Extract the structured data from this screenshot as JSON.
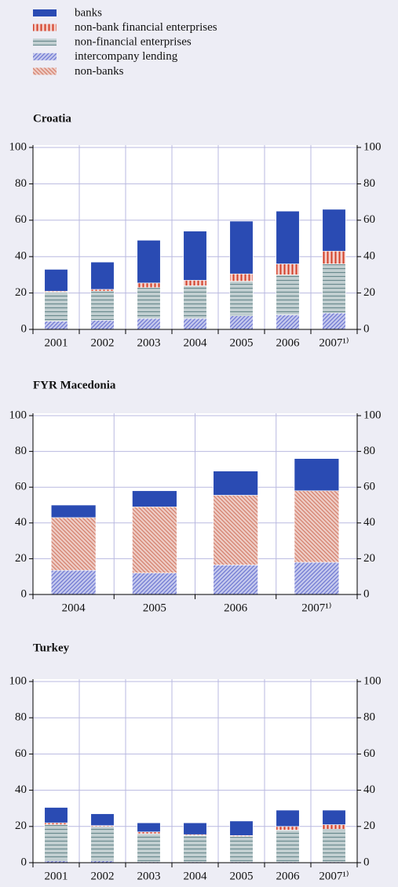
{
  "legend": [
    {
      "name": "banks",
      "color": "#2a4bb3",
      "pattern": "solid"
    },
    {
      "name": "non-bank financial enterprises",
      "color": "#d2402a",
      "pattern": "vertical"
    },
    {
      "name": "non-financial enterprises",
      "color": "#6a8a8e",
      "pattern": "horizontal"
    },
    {
      "name": "intercompany lending",
      "color": "#6f78d2",
      "pattern": "diagonal-up"
    },
    {
      "name": "non-banks",
      "color": "#d4806d",
      "pattern": "diagonal-down"
    }
  ],
  "chart_data": [
    {
      "type": "bar",
      "stacked": true,
      "title": "Croatia",
      "categories": [
        "2001",
        "2002",
        "2003",
        "2004",
        "2005",
        "2006",
        "2007¹⁾"
      ],
      "series": [
        {
          "name": "intercompany lending",
          "color": "#6f78d2",
          "pattern": "diagonal-up",
          "values": [
            4.5,
            5,
            6,
            6,
            7.5,
            8,
            9
          ]
        },
        {
          "name": "non-financial enterprises",
          "color": "#6a8a8e",
          "pattern": "horizontal",
          "values": [
            16,
            16,
            17,
            18,
            19,
            22,
            27
          ]
        },
        {
          "name": "non-bank financial enterprises",
          "color": "#d2402a",
          "pattern": "vertical",
          "values": [
            0.5,
            1,
            2.5,
            3,
            4,
            6,
            7
          ]
        },
        {
          "name": "banks",
          "color": "#2a4bb3",
          "pattern": "solid",
          "values": [
            12,
            15,
            23.5,
            27,
            29,
            29,
            23
          ]
        }
      ],
      "ylim": [
        0,
        100
      ],
      "yticks": [
        0,
        20,
        40,
        60,
        80,
        100
      ],
      "grid": true
    },
    {
      "type": "bar",
      "stacked": true,
      "title": "FYR Macedonia",
      "categories": [
        "2004",
        "2005",
        "2006",
        "2007¹⁾"
      ],
      "series": [
        {
          "name": "intercompany lending",
          "color": "#6f78d2",
          "pattern": "diagonal-up",
          "values": [
            13.5,
            12,
            16.5,
            18
          ]
        },
        {
          "name": "non-banks",
          "color": "#d4806d",
          "pattern": "diagonal-down",
          "values": [
            29.5,
            37,
            39,
            40
          ]
        },
        {
          "name": "banks",
          "color": "#2a4bb3",
          "pattern": "solid",
          "values": [
            7,
            9,
            13.5,
            18
          ]
        }
      ],
      "ylim": [
        0,
        100
      ],
      "yticks": [
        0,
        20,
        40,
        60,
        80,
        100
      ],
      "grid": true
    },
    {
      "type": "bar",
      "stacked": true,
      "title": "Turkey",
      "categories": [
        "2001",
        "2002",
        "2003",
        "2004",
        "2005",
        "2006",
        "2007¹⁾"
      ],
      "series": [
        {
          "name": "intercompany lending",
          "color": "#6f78d2",
          "pattern": "diagonal-up",
          "values": [
            1,
            1,
            0.5,
            0.5,
            0.5,
            0.5,
            0.5
          ]
        },
        {
          "name": "non-financial enterprises",
          "color": "#6a8a8e",
          "pattern": "horizontal",
          "values": [
            20,
            19,
            15.5,
            14.5,
            14,
            17.5,
            18
          ]
        },
        {
          "name": "non-bank financial enterprises",
          "color": "#d2402a",
          "pattern": "vertical",
          "values": [
            1,
            0.5,
            1,
            0.5,
            0.5,
            2,
            2.5
          ]
        },
        {
          "name": "banks",
          "color": "#2a4bb3",
          "pattern": "solid",
          "values": [
            8.5,
            6.5,
            5,
            6.5,
            8,
            9,
            8
          ]
        }
      ],
      "ylim": [
        0,
        100
      ],
      "yticks": [
        0,
        20,
        40,
        60,
        80,
        100
      ],
      "grid": true
    }
  ]
}
